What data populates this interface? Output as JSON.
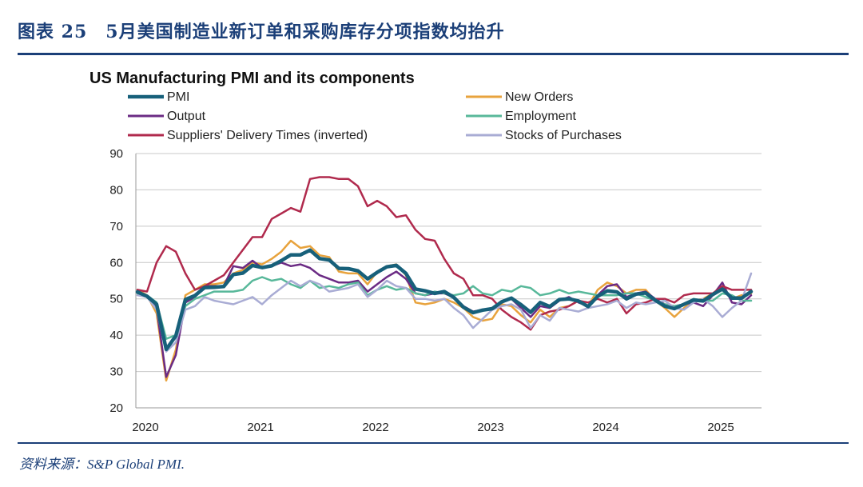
{
  "figure": {
    "label": "图表 25　5月美国制造业新订单和采购库存分项指数均抬升",
    "source": "资料来源：S&P Global PMI."
  },
  "chart_data": {
    "type": "line",
    "title": "US Manufacturing PMI and its components",
    "xlabel": "",
    "ylabel": "",
    "ylim": [
      20,
      90
    ],
    "yticks": [
      20,
      30,
      40,
      50,
      60,
      70,
      80,
      90
    ],
    "xticks": [
      "2020",
      "2021",
      "2022",
      "2023",
      "2024",
      "2025"
    ],
    "xlim": [
      "2020-01",
      "2025-05"
    ],
    "grid": "horizontal",
    "legend": "top, two columns",
    "x": [
      "2020-01",
      "2020-02",
      "2020-03",
      "2020-04",
      "2020-05",
      "2020-06",
      "2020-07",
      "2020-08",
      "2020-09",
      "2020-10",
      "2020-11",
      "2020-12",
      "2021-01",
      "2021-02",
      "2021-03",
      "2021-04",
      "2021-05",
      "2021-06",
      "2021-07",
      "2021-08",
      "2021-09",
      "2021-10",
      "2021-11",
      "2021-12",
      "2022-01",
      "2022-02",
      "2022-03",
      "2022-04",
      "2022-05",
      "2022-06",
      "2022-07",
      "2022-08",
      "2022-09",
      "2022-10",
      "2022-11",
      "2022-12",
      "2023-01",
      "2023-02",
      "2023-03",
      "2023-04",
      "2023-05",
      "2023-06",
      "2023-07",
      "2023-08",
      "2023-09",
      "2023-10",
      "2023-11",
      "2023-12",
      "2024-01",
      "2024-02",
      "2024-03",
      "2024-04",
      "2024-05",
      "2024-06",
      "2024-07",
      "2024-08",
      "2024-09",
      "2024-10",
      "2024-11",
      "2024-12",
      "2025-01",
      "2025-02",
      "2025-03",
      "2025-04",
      "2025-05"
    ],
    "series": [
      {
        "name": "PMI",
        "color": "#17607a",
        "width": 4.5,
        "values": [
          51.9,
          50.7,
          48.5,
          36.1,
          39.8,
          49.8,
          50.9,
          53.1,
          53.2,
          53.4,
          56.7,
          57.1,
          59.2,
          58.6,
          59.1,
          60.5,
          62.1,
          62.1,
          63.4,
          61.1,
          60.7,
          58.4,
          58.3,
          57.7,
          55.5,
          57.3,
          58.8,
          59.2,
          57.0,
          52.7,
          52.2,
          51.5,
          52.0,
          50.4,
          47.7,
          46.2,
          46.9,
          47.3,
          49.2,
          50.2,
          48.4,
          46.3,
          49.0,
          47.9,
          49.8,
          50.0,
          49.4,
          47.9,
          50.7,
          52.2,
          51.9,
          50.0,
          51.3,
          51.6,
          49.6,
          48.0,
          47.3,
          48.5,
          49.7,
          49.4,
          51.2,
          52.7,
          50.2,
          50.2,
          52.0
        ]
      },
      {
        "name": "New Orders",
        "color": "#e8a33d",
        "width": 2.5,
        "values": [
          52.5,
          51.0,
          46.0,
          27.5,
          36.0,
          51.0,
          52.5,
          54.0,
          54.0,
          54.5,
          57.0,
          58.0,
          60.0,
          59.5,
          61.0,
          63.0,
          66.0,
          64.0,
          64.5,
          62.0,
          61.5,
          57.5,
          57.0,
          57.0,
          54.0,
          57.5,
          59.0,
          59.5,
          56.5,
          49.0,
          48.5,
          49.0,
          50.0,
          49.0,
          47.5,
          45.0,
          44.0,
          44.5,
          48.5,
          48.0,
          45.5,
          43.5,
          47.0,
          45.0,
          47.5,
          48.0,
          49.5,
          48.0,
          52.5,
          54.5,
          53.5,
          51.5,
          52.5,
          52.5,
          49.5,
          47.5,
          45.0,
          47.5,
          49.5,
          50.0,
          51.5,
          53.0,
          50.0,
          51.0,
          51.5
        ]
      },
      {
        "name": "Output",
        "color": "#6b2b84",
        "width": 2.5,
        "values": [
          52.0,
          50.5,
          47.5,
          28.5,
          34.5,
          49.0,
          50.5,
          53.5,
          53.5,
          53.5,
          59.0,
          58.5,
          60.5,
          58.5,
          59.0,
          60.0,
          59.0,
          59.5,
          58.5,
          56.5,
          55.5,
          54.5,
          54.5,
          55.0,
          52.0,
          54.0,
          56.0,
          57.5,
          55.5,
          51.5,
          51.0,
          51.5,
          51.5,
          50.5,
          48.0,
          46.5,
          47.0,
          47.5,
          49.0,
          50.0,
          47.5,
          45.0,
          48.0,
          47.5,
          49.5,
          50.5,
          49.0,
          48.0,
          51.0,
          53.5,
          54.0,
          50.5,
          51.5,
          52.0,
          50.0,
          48.5,
          48.0,
          48.5,
          49.0,
          48.0,
          51.0,
          54.5,
          49.0,
          48.5,
          51.0
        ]
      },
      {
        "name": "Employment",
        "color": "#58b89a",
        "width": 2.5,
        "values": [
          51.5,
          51.0,
          49.0,
          39.0,
          40.0,
          48.0,
          50.0,
          51.0,
          52.0,
          52.0,
          52.0,
          52.5,
          55.0,
          56.0,
          55.0,
          55.5,
          54.0,
          53.0,
          55.0,
          53.0,
          53.5,
          53.0,
          54.0,
          54.5,
          51.0,
          52.5,
          53.5,
          52.5,
          53.0,
          51.5,
          51.0,
          52.0,
          51.5,
          51.0,
          51.5,
          53.5,
          51.5,
          51.0,
          52.5,
          52.0,
          53.5,
          53.0,
          51.0,
          51.5,
          52.5,
          51.5,
          52.0,
          51.5,
          51.0,
          51.0,
          51.0,
          51.5,
          51.5,
          50.5,
          49.5,
          48.5,
          48.0,
          48.5,
          50.0,
          49.5,
          49.5,
          51.5,
          51.0,
          49.5,
          49.5
        ]
      },
      {
        "name": "Suppliers' Delivery Times (inverted)",
        "color": "#b02a4d",
        "width": 2.5,
        "values": [
          52.5,
          52.0,
          60.0,
          64.5,
          63.0,
          57.0,
          52.5,
          53.5,
          55.0,
          56.5,
          60.0,
          63.5,
          67.0,
          67.0,
          72.0,
          73.5,
          75.0,
          74.0,
          83.0,
          83.5,
          83.5,
          83.0,
          83.0,
          81.0,
          75.5,
          77.0,
          75.5,
          72.5,
          73.0,
          69.0,
          66.5,
          66.0,
          61.0,
          57.0,
          55.5,
          51.0,
          51.0,
          50.0,
          47.0,
          45.0,
          43.5,
          41.5,
          45.5,
          46.5,
          47.0,
          48.0,
          49.5,
          49.0,
          50.0,
          49.0,
          50.0,
          46.0,
          48.5,
          49.0,
          50.0,
          50.0,
          49.0,
          51.0,
          51.5,
          51.5,
          51.5,
          53.5,
          52.5,
          52.5,
          52.5
        ]
      },
      {
        "name": "Stocks of Purchases",
        "color": "#a9acd4",
        "width": 2.5,
        "values": [
          51.0,
          50.5,
          47.0,
          35.5,
          38.0,
          47.0,
          48.0,
          50.5,
          49.5,
          49.0,
          48.5,
          49.5,
          50.5,
          48.5,
          51.0,
          53.0,
          55.0,
          53.5,
          55.0,
          54.0,
          52.0,
          52.5,
          53.0,
          54.0,
          50.5,
          52.5,
          55.0,
          53.5,
          53.0,
          50.0,
          50.0,
          49.5,
          50.0,
          47.5,
          45.5,
          42.0,
          44.5,
          47.0,
          48.0,
          48.5,
          47.0,
          42.0,
          45.5,
          44.0,
          47.5,
          47.0,
          46.5,
          47.5,
          48.0,
          48.5,
          49.5,
          47.5,
          49.0,
          48.5,
          49.0,
          49.5,
          47.5,
          47.0,
          49.0,
          50.0,
          48.0,
          45.0,
          47.5,
          49.5,
          57.0
        ]
      }
    ]
  }
}
